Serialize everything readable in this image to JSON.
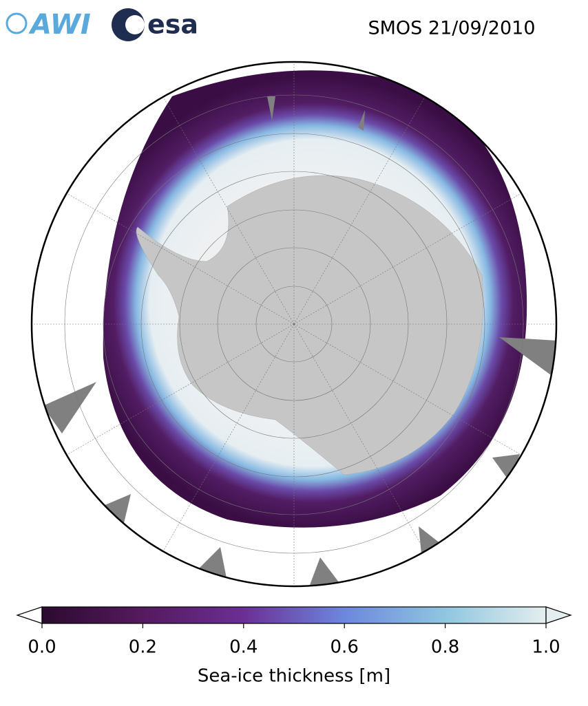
{
  "header": {
    "logo_left": "AWI",
    "logo_right": "esa",
    "title": "SMOS 21/09/2010"
  },
  "colorbar": {
    "label": "Sea-ice thickness [m]",
    "lim": [
      0,
      1
    ],
    "ticks": [
      {
        "value": 0,
        "label": "0.0"
      },
      {
        "value": 0.2,
        "label": "0.2"
      },
      {
        "value": 0.4,
        "label": "0.4"
      },
      {
        "value": 0.6,
        "label": "0.6"
      },
      {
        "value": 0.8,
        "label": "0.8"
      },
      {
        "value": 1,
        "label": "1.0"
      }
    ],
    "colors": [
      "#2b0b2f",
      "#551a5e",
      "#6b2f95",
      "#6d87de",
      "#8fc6df",
      "#e4eeee"
    ]
  }
}
